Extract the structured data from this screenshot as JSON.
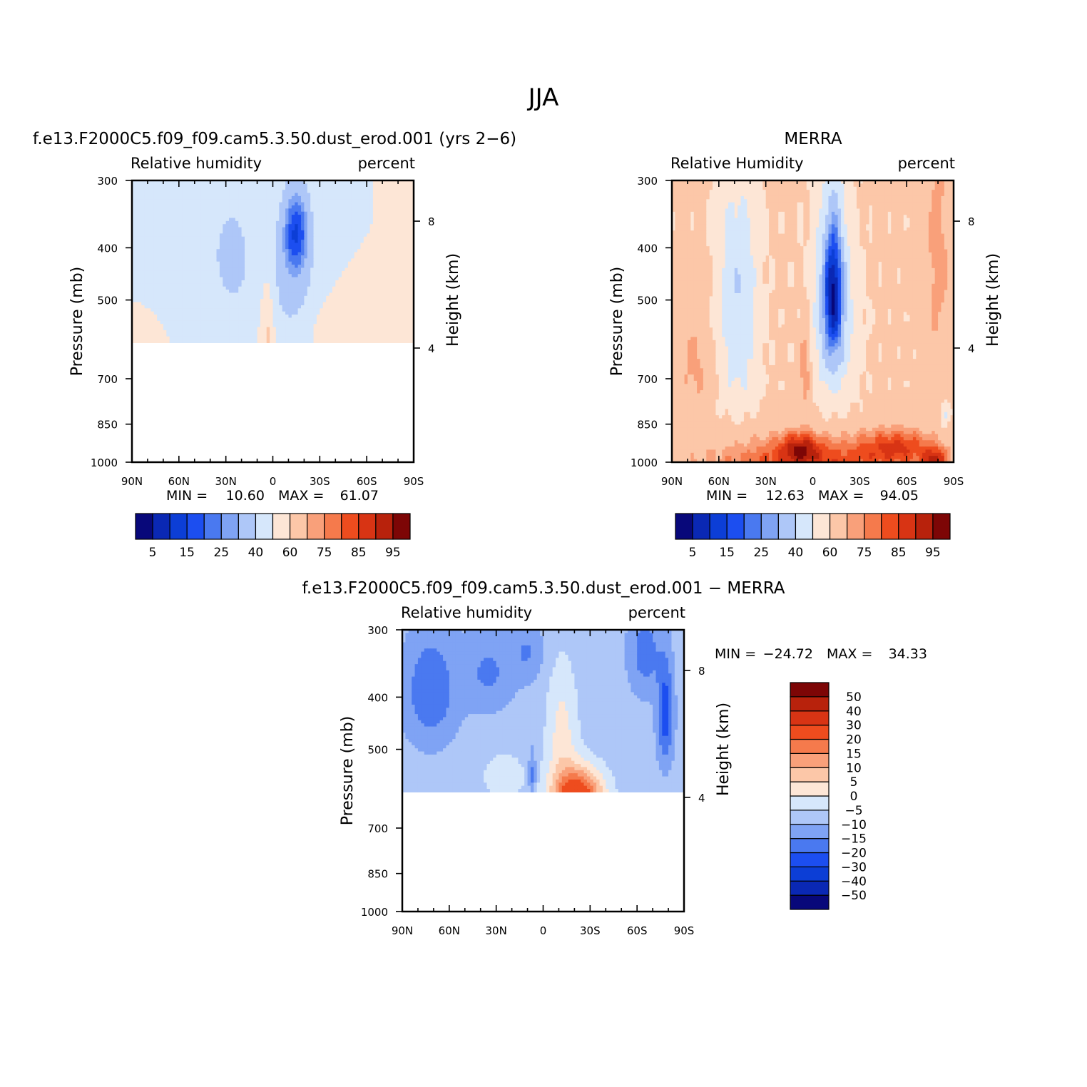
{
  "title": "JJA",
  "chart_data": [
    {
      "type": "contour",
      "title": "f.e13.F2000C5.f09_f09.cam5.3.50.dust_erod.001 (yrs 2−6)",
      "left_subtitle": "Relative humidity",
      "right_subtitle": "percent",
      "xlabel": "",
      "ylabel": "Pressure (mb)",
      "y2label": "Height (km)",
      "x_ticks": [
        "90N",
        "60N",
        "30N",
        "0",
        "30S",
        "60S",
        "90S"
      ],
      "y_ticks": [
        "300",
        "400",
        "500",
        "700",
        "850",
        "1000"
      ],
      "y_tick_values": [
        300,
        400,
        500,
        700,
        850,
        1000
      ],
      "y2_ticks": [
        "8",
        "4"
      ],
      "ylim": [
        1000,
        300
      ],
      "xlim": [
        90,
        -90
      ],
      "data_bottom_mb": 600,
      "stats": {
        "min_label": "MIN =",
        "min": "10.60",
        "max_label": "MAX =",
        "max": "61.07"
      },
      "colorbar": {
        "orientation": "horizontal",
        "levels": [
          5,
          10,
          15,
          20,
          25,
          30,
          40,
          50,
          60,
          70,
          75,
          80,
          85,
          90,
          95
        ],
        "labels": [
          "5",
          "15",
          "25",
          "40",
          "60",
          "75",
          "85",
          "95"
        ],
        "colors": [
          "#08087a",
          "#0a28b4",
          "#0c3ed6",
          "#1c4ef0",
          "#4a79f0",
          "#7fa3f4",
          "#aec7f8",
          "#d6e7fb",
          "#fde6d6",
          "#fcc7a8",
          "#f9a07a",
          "#f57a4c",
          "#ee4c1e",
          "#d83414",
          "#b8220c",
          "#7d0606"
        ]
      }
    },
    {
      "type": "contour",
      "title": "MERRA",
      "left_subtitle": "Relative Humidity",
      "right_subtitle": "percent",
      "xlabel": "",
      "ylabel": "Pressure (mb)",
      "y2label": "Height (km)",
      "x_ticks": [
        "90N",
        "60N",
        "30N",
        "0",
        "30S",
        "60S",
        "90S"
      ],
      "y_ticks": [
        "300",
        "400",
        "500",
        "700",
        "850",
        "1000"
      ],
      "y_tick_values": [
        300,
        400,
        500,
        700,
        850,
        1000
      ],
      "y2_ticks": [
        "8",
        "4"
      ],
      "ylim": [
        1000,
        300
      ],
      "xlim": [
        90,
        -90
      ],
      "data_bottom_mb": 1000,
      "stats": {
        "min_label": "MIN =",
        "min": "12.63",
        "max_label": "MAX =",
        "max": "94.05"
      },
      "colorbar": {
        "orientation": "horizontal",
        "levels": [
          5,
          10,
          15,
          20,
          25,
          30,
          40,
          50,
          60,
          70,
          75,
          80,
          85,
          90,
          95
        ],
        "labels": [
          "5",
          "15",
          "25",
          "40",
          "60",
          "75",
          "85",
          "95"
        ],
        "colors": [
          "#08087a",
          "#0a28b4",
          "#0c3ed6",
          "#1c4ef0",
          "#4a79f0",
          "#7fa3f4",
          "#aec7f8",
          "#d6e7fb",
          "#fde6d6",
          "#fcc7a8",
          "#f9a07a",
          "#f57a4c",
          "#ee4c1e",
          "#d83414",
          "#b8220c",
          "#7d0606"
        ]
      }
    },
    {
      "type": "contour",
      "title": "f.e13.F2000C5.f09_f09.cam5.3.50.dust_erod.001 − MERRA",
      "left_subtitle": "Relative humidity",
      "right_subtitle": "percent",
      "xlabel": "",
      "ylabel": "Pressure (mb)",
      "y2label": "Height (km)",
      "x_ticks": [
        "90N",
        "60N",
        "30N",
        "0",
        "30S",
        "60S",
        "90S"
      ],
      "y_ticks": [
        "300",
        "400",
        "500",
        "700",
        "850",
        "1000"
      ],
      "y_tick_values": [
        300,
        400,
        500,
        700,
        850,
        1000
      ],
      "y2_ticks": [
        "8",
        "4"
      ],
      "ylim": [
        1000,
        300
      ],
      "xlim": [
        90,
        -90
      ],
      "data_bottom_mb": 600,
      "stats": {
        "min_label": "MIN =",
        "min": "−24.72",
        "max_label": "MAX =",
        "max": "34.33"
      },
      "colorbar": {
        "orientation": "vertical",
        "levels": [
          -50,
          -40,
          -30,
          -20,
          -15,
          -10,
          -5,
          0,
          5,
          10,
          15,
          20,
          30,
          40,
          50
        ],
        "labels": [
          "−50",
          "−40",
          "−30",
          "−20",
          "−15",
          "−10",
          "−5",
          "0",
          "5",
          "10",
          "15",
          "20",
          "30",
          "40",
          "50"
        ],
        "colors": [
          "#08087a",
          "#0a28b4",
          "#0c3ed6",
          "#1c4ef0",
          "#4a79f0",
          "#7fa3f4",
          "#aec7f8",
          "#d6e7fb",
          "#fde6d6",
          "#fcc7a8",
          "#f9a07a",
          "#f57a4c",
          "#ee4c1e",
          "#d83414",
          "#b8220c",
          "#7d0606"
        ]
      }
    }
  ]
}
